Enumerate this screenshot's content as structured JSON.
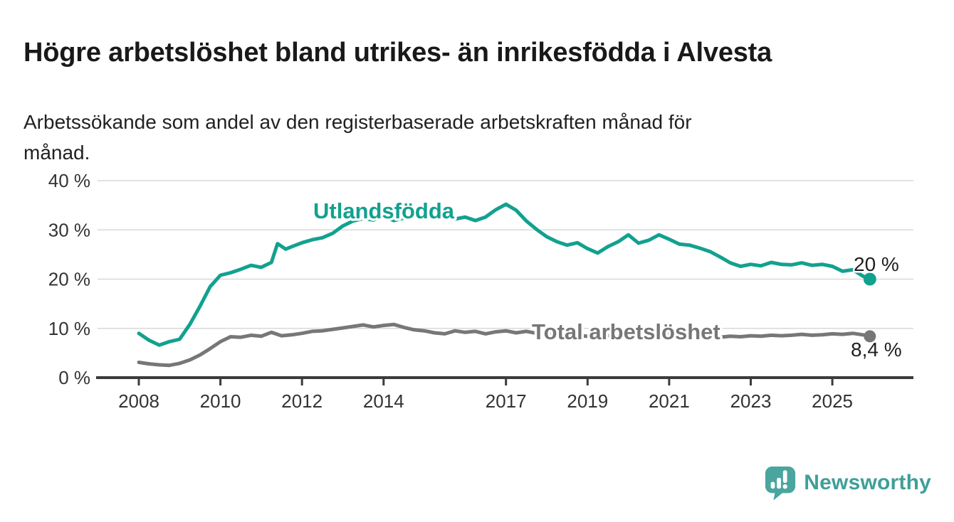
{
  "header": {
    "title": "Högre arbetslöshet bland utrikes- än inrikesfödda i Alvesta",
    "subtitle_line1": "Arbetssökande som andel av den registerbaserade arbetskraften månad för",
    "subtitle_line2": "månad."
  },
  "branding": {
    "wordmark": "Newsworthy",
    "logo_icon": "newsworthy-speech-bubble-bar-chart-icon",
    "brand_color": "#45a59e"
  },
  "chart_data": {
    "type": "line",
    "title": "Högre arbetslöshet bland utrikes- än inrikesfödda i Alvesta",
    "subtitle": "Arbetssökande som andel av den registerbaserade arbetskraften månad för månad.",
    "grid": true,
    "legend_position": "inline-labels",
    "x_axis": {
      "tick_values": [
        2008,
        2010,
        2012,
        2014,
        2017,
        2019,
        2021,
        2023,
        2025
      ],
      "tick_labels": [
        "2008",
        "2010",
        "2012",
        "2014",
        "2017",
        "2019",
        "2021",
        "2023",
        "2025"
      ],
      "range": [
        2007.85,
        2026.3
      ]
    },
    "y_axis": {
      "tick_values": [
        0,
        10,
        20,
        30,
        40
      ],
      "tick_labels": [
        "0 %",
        "10 %",
        "20 %",
        "30 %",
        "40 %"
      ],
      "range": [
        0,
        40
      ],
      "unit": "%"
    },
    "series": [
      {
        "name": "Utlandsfödda",
        "color": "#12a18f",
        "end_label": "20 %",
        "end_value": 20.0,
        "x": [
          2008.0,
          2008.25,
          2008.5,
          2008.75,
          2009.0,
          2009.25,
          2009.5,
          2009.75,
          2010.0,
          2010.25,
          2010.5,
          2010.75,
          2011.0,
          2011.25,
          2011.4,
          2011.6,
          2011.75,
          2012.0,
          2012.25,
          2012.5,
          2012.75,
          2013.0,
          2013.25,
          2013.5,
          2013.75,
          2014.0,
          2014.25,
          2014.5,
          2014.75,
          2015.0,
          2015.25,
          2015.5,
          2015.75,
          2016.0,
          2016.25,
          2016.5,
          2016.75,
          2017.0,
          2017.25,
          2017.5,
          2017.75,
          2018.0,
          2018.25,
          2018.5,
          2018.75,
          2019.0,
          2019.25,
          2019.5,
          2019.75,
          2020.0,
          2020.25,
          2020.5,
          2020.75,
          2021.0,
          2021.25,
          2021.5,
          2021.75,
          2022.0,
          2022.25,
          2022.5,
          2022.75,
          2023.0,
          2023.25,
          2023.5,
          2023.75,
          2024.0,
          2024.25,
          2024.5,
          2024.75,
          2025.0,
          2025.25,
          2025.5,
          2025.75,
          2025.92
        ],
        "values": [
          9.0,
          7.6,
          6.6,
          7.3,
          7.8,
          10.8,
          14.5,
          18.5,
          20.8,
          21.3,
          22.0,
          22.8,
          22.4,
          23.4,
          27.2,
          26.1,
          26.6,
          27.4,
          28.0,
          28.4,
          29.3,
          30.8,
          31.8,
          32.3,
          32.0,
          32.8,
          31.9,
          32.4,
          32.9,
          33.0,
          33.3,
          32.9,
          32.2,
          32.6,
          31.9,
          32.6,
          34.1,
          35.2,
          34.0,
          31.8,
          30.1,
          28.6,
          27.6,
          26.9,
          27.4,
          26.2,
          25.3,
          26.6,
          27.6,
          29.0,
          27.3,
          27.9,
          29.0,
          28.1,
          27.1,
          26.9,
          26.3,
          25.6,
          24.5,
          23.3,
          22.6,
          23.0,
          22.7,
          23.4,
          23.0,
          22.9,
          23.3,
          22.8,
          23.0,
          22.6,
          21.6,
          21.9,
          20.6,
          20.0
        ]
      },
      {
        "name": "Total arbetslöshet",
        "color": "#777777",
        "end_label": "8,4 %",
        "end_value": 8.4,
        "x": [
          2008.0,
          2008.25,
          2008.5,
          2008.75,
          2009.0,
          2009.25,
          2009.5,
          2009.75,
          2010.0,
          2010.25,
          2010.5,
          2010.75,
          2011.0,
          2011.25,
          2011.5,
          2011.75,
          2012.0,
          2012.25,
          2012.5,
          2012.75,
          2013.0,
          2013.25,
          2013.5,
          2013.75,
          2014.0,
          2014.25,
          2014.5,
          2014.75,
          2015.0,
          2015.25,
          2015.5,
          2015.75,
          2016.0,
          2016.25,
          2016.5,
          2016.75,
          2017.0,
          2017.25,
          2017.5,
          2017.75,
          2018.0,
          2018.25,
          2018.5,
          2018.75,
          2019.0,
          2019.25,
          2019.5,
          2019.75,
          2020.0,
          2020.25,
          2020.5,
          2020.75,
          2021.0,
          2021.25,
          2021.5,
          2021.75,
          2022.0,
          2022.25,
          2022.5,
          2022.75,
          2023.0,
          2023.25,
          2023.5,
          2023.75,
          2024.0,
          2024.25,
          2024.5,
          2024.75,
          2025.0,
          2025.25,
          2025.5,
          2025.75,
          2025.92
        ],
        "values": [
          3.1,
          2.8,
          2.6,
          2.5,
          2.9,
          3.6,
          4.6,
          5.9,
          7.3,
          8.3,
          8.2,
          8.6,
          8.4,
          9.2,
          8.5,
          8.7,
          9.0,
          9.4,
          9.5,
          9.8,
          10.1,
          10.4,
          10.7,
          10.3,
          10.6,
          10.8,
          10.2,
          9.7,
          9.5,
          9.1,
          8.9,
          9.5,
          9.2,
          9.4,
          8.9,
          9.3,
          9.5,
          9.1,
          9.4,
          9.0,
          8.9,
          8.8,
          8.6,
          8.5,
          8.4,
          8.2,
          8.5,
          8.8,
          9.6,
          9.9,
          9.7,
          9.3,
          9.0,
          8.7,
          8.5,
          8.4,
          8.3,
          8.2,
          8.4,
          8.3,
          8.5,
          8.4,
          8.6,
          8.5,
          8.6,
          8.8,
          8.6,
          8.7,
          8.9,
          8.8,
          9.0,
          8.7,
          8.4
        ]
      }
    ]
  }
}
